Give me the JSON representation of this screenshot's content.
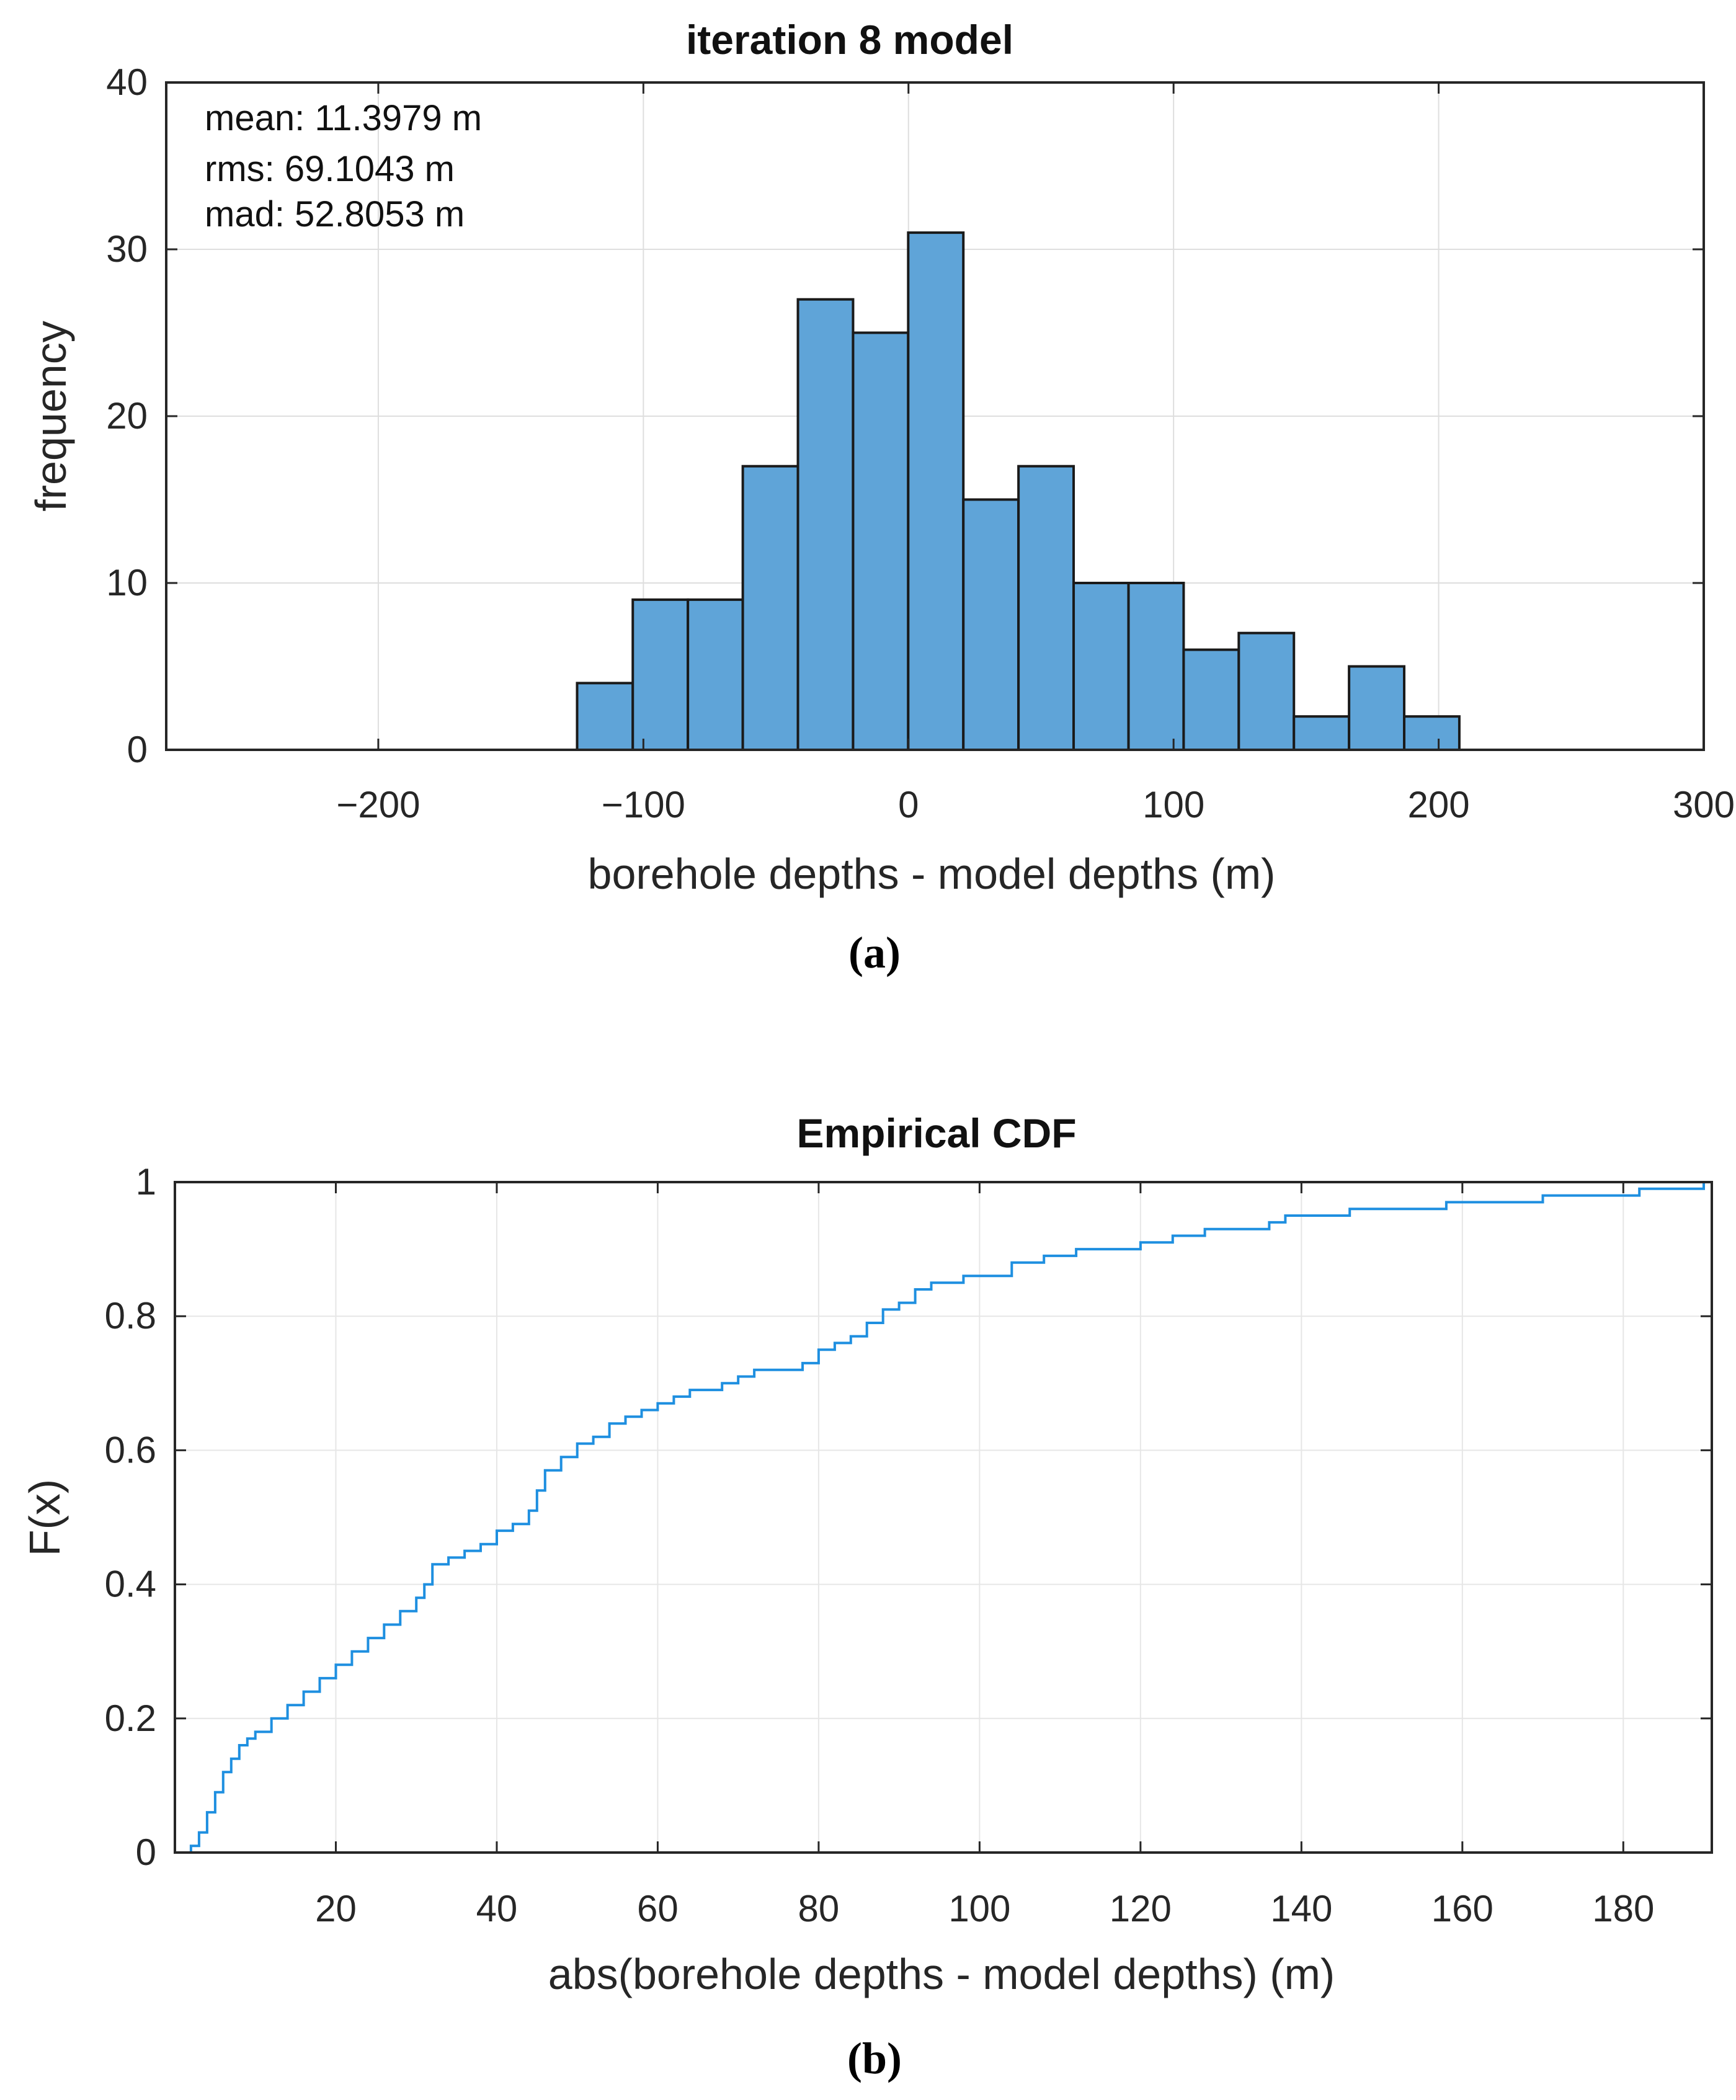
{
  "chart_data": [
    {
      "type": "bar",
      "panel_label": "(a)",
      "title": "iteration 8 model",
      "xlabel": "borehole depths - model depths (m)",
      "ylabel": "frequency",
      "xlim": [
        -280,
        300
      ],
      "ylim": [
        0,
        40
      ],
      "xticks": [
        "−200",
        "−100",
        "0",
        "100",
        "200",
        "300"
      ],
      "xtick_values": [
        -200,
        -100,
        0,
        100,
        200,
        300
      ],
      "yticks": [
        "0",
        "10",
        "20",
        "30",
        "40"
      ],
      "ytick_values": [
        0,
        10,
        20,
        30,
        40
      ],
      "grid": true,
      "bar_color": "#5fa4d8",
      "bin_edges": [
        -125,
        -104,
        -83.2,
        -62.5,
        -41.7,
        -20.9,
        -0.1,
        20.7,
        41.5,
        62.3,
        83,
        103.8,
        124.6,
        145.4,
        166.2,
        187,
        207.8
      ],
      "values": [
        4,
        9,
        9,
        17,
        27,
        25,
        31,
        15,
        17,
        10,
        10,
        6,
        7,
        2,
        5,
        2
      ],
      "stats": [
        "mean: 11.3979 m",
        "rms: 69.1043 m",
        "mad: 52.8053 m"
      ]
    },
    {
      "type": "line",
      "panel_label": "(b)",
      "title": "Empirical CDF",
      "xlabel": "abs(borehole depths - model depths) (m)",
      "ylabel": "F(x)",
      "xlim": [
        0,
        191
      ],
      "ylim": [
        0,
        1
      ],
      "xticks": [
        "20",
        "40",
        "60",
        "80",
        "100",
        "120",
        "140",
        "160",
        "180"
      ],
      "xtick_values": [
        20,
        40,
        60,
        80,
        100,
        120,
        140,
        160,
        180
      ],
      "yticks": [
        "0",
        "0.2",
        "0.4",
        "0.6",
        "0.8",
        "1"
      ],
      "ytick_values": [
        0,
        0.2,
        0.4,
        0.6,
        0.8,
        1
      ],
      "grid": true,
      "line_color": "#1e8fe0",
      "series": [
        {
          "x": [
            0.5,
            2,
            3,
            4,
            5,
            6,
            7,
            8,
            9,
            10,
            12,
            14,
            16,
            18,
            20,
            22,
            24,
            26,
            28,
            30,
            31,
            32,
            34,
            36,
            38,
            40,
            42,
            44,
            45,
            46,
            48,
            50,
            52,
            54,
            56,
            58,
            60,
            62,
            64,
            66,
            68,
            70,
            72,
            74,
            76,
            78,
            80,
            82,
            84,
            86,
            88,
            90,
            92,
            94,
            96,
            98,
            100,
            104,
            108,
            112,
            116,
            120,
            124,
            128,
            132,
            136,
            138,
            142,
            146,
            150,
            154,
            158,
            162,
            166,
            170,
            174,
            178,
            182,
            186,
            190,
            191
          ],
          "y": [
            0,
            0.01,
            0.03,
            0.06,
            0.09,
            0.12,
            0.14,
            0.16,
            0.17,
            0.18,
            0.2,
            0.22,
            0.24,
            0.26,
            0.28,
            0.3,
            0.32,
            0.34,
            0.36,
            0.38,
            0.4,
            0.43,
            0.44,
            0.45,
            0.46,
            0.48,
            0.49,
            0.51,
            0.54,
            0.57,
            0.59,
            0.61,
            0.62,
            0.64,
            0.65,
            0.66,
            0.67,
            0.68,
            0.69,
            0.69,
            0.7,
            0.71,
            0.72,
            0.72,
            0.72,
            0.73,
            0.75,
            0.76,
            0.77,
            0.79,
            0.81,
            0.82,
            0.84,
            0.85,
            0.85,
            0.86,
            0.86,
            0.88,
            0.89,
            0.9,
            0.9,
            0.91,
            0.92,
            0.93,
            0.93,
            0.94,
            0.95,
            0.95,
            0.96,
            0.96,
            0.96,
            0.97,
            0.97,
            0.97,
            0.98,
            0.98,
            0.98,
            0.99,
            0.99,
            1,
            1
          ]
        }
      ]
    }
  ]
}
